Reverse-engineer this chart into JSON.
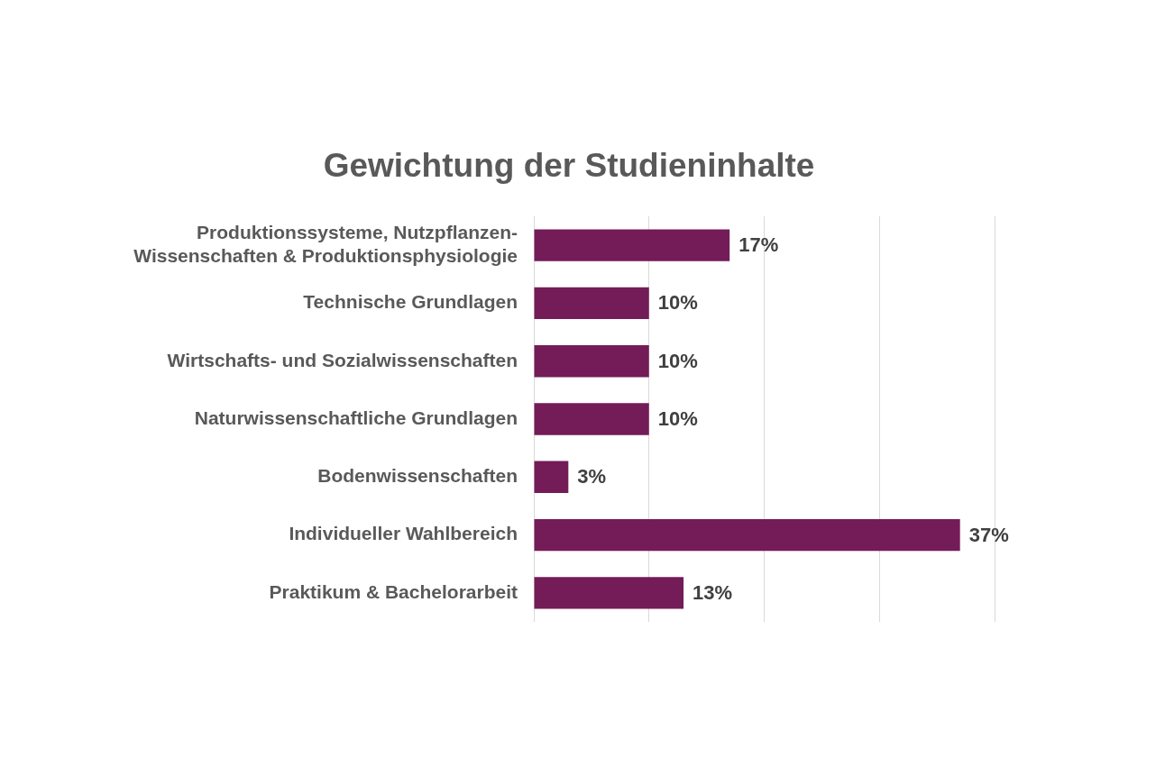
{
  "chart_data": {
    "type": "bar",
    "orientation": "horizontal",
    "title": "Gewichtung der Studieninhalte",
    "categories": [
      "Produktionssysteme, Nutzpflanzen-Wissenschaften & Produktionsphysiologie",
      "Technische Grundlagen",
      "Wirtschafts- und Sozialwissenschaften",
      "Naturwissenschaftliche Grundlagen",
      "Bodenwissenschaften",
      "Individueller Wahlbereich",
      "Praktikum & Bachelorarbeit"
    ],
    "values": [
      17,
      10,
      10,
      10,
      3,
      37,
      13
    ],
    "value_labels": [
      "17%",
      "10%",
      "10%",
      "10%",
      "3%",
      "37%",
      "13%"
    ],
    "color": "#731c57",
    "xlim": [
      0,
      40
    ],
    "xticks": [
      {
        "value": 0,
        "label": null
      },
      {
        "value": 10,
        "label": null
      },
      {
        "value": 20,
        "label": null
      },
      {
        "value": 30,
        "label": null
      },
      {
        "value": 40,
        "label": null
      }
    ],
    "grid": "x",
    "tick_labels": "y"
  }
}
